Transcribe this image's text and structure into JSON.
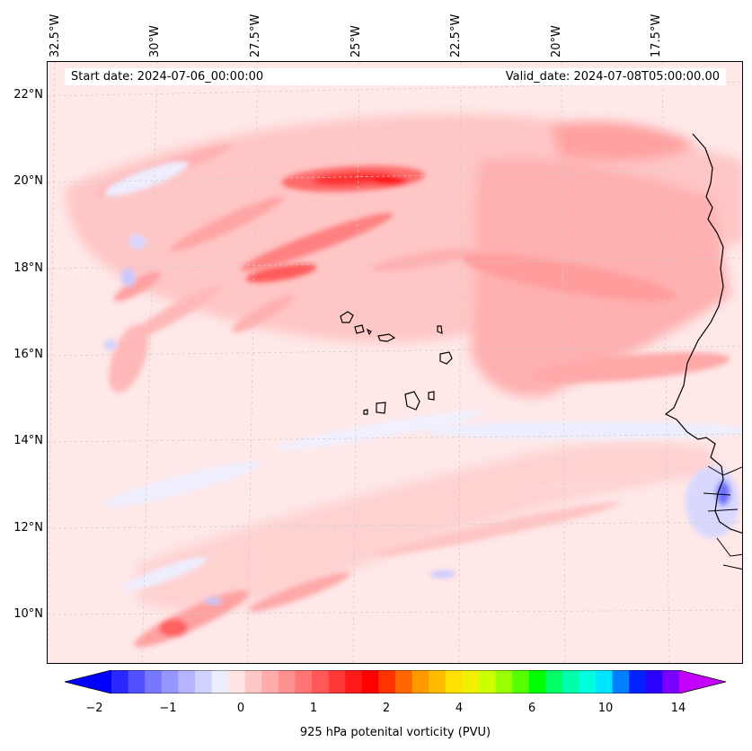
{
  "header": {
    "start_date": "Start date: 2024-07-06_00:00:00",
    "valid_date": "Valid_date: 2024-07-08T05:00:00.00"
  },
  "axes": {
    "lon_labels": [
      "32.5°W",
      "30°W",
      "27.5°W",
      "25°W",
      "22.5°W",
      "20°W",
      "17.5°W"
    ],
    "lat_labels": [
      "22°N",
      "20°N",
      "18°N",
      "16°N",
      "14°N",
      "12°N",
      "10°N"
    ],
    "lon_range": [
      -32.6,
      -15.5
    ],
    "lat_range": [
      8.9,
      22.8
    ],
    "grid": true
  },
  "colorbar": {
    "label": "925 hPa potenital vorticity (PVU)",
    "ticks": [
      "−2",
      "−1",
      "0",
      "1",
      "2",
      "4",
      "6",
      "10",
      "14"
    ],
    "extend": "both",
    "colors": [
      "#0000ff",
      "#2828ff",
      "#5050ff",
      "#7878ff",
      "#9696ff",
      "#b4b4ff",
      "#d2d2ff",
      "#ececff",
      "#ffe4e4",
      "#ffc8c8",
      "#ffacac",
      "#ff9090",
      "#ff7474",
      "#ff5858",
      "#ff3838",
      "#ff1a1a",
      "#ff0000",
      "#ff3300",
      "#ff6600",
      "#ff9900",
      "#ffbb00",
      "#ffe000",
      "#f0f000",
      "#ccff00",
      "#99ff00",
      "#55ff00",
      "#00ff00",
      "#00ff66",
      "#00ffaa",
      "#00ffdd",
      "#00e5ff",
      "#0080ff",
      "#0022ff",
      "#2a00ff",
      "#7a00ff",
      "#c400ff"
    ]
  },
  "map_data": {
    "field": "925 hPa potential vorticity",
    "background_color": "#ffe8e8",
    "features": [
      "Cape Verde islands",
      "West African coastline"
    ]
  }
}
